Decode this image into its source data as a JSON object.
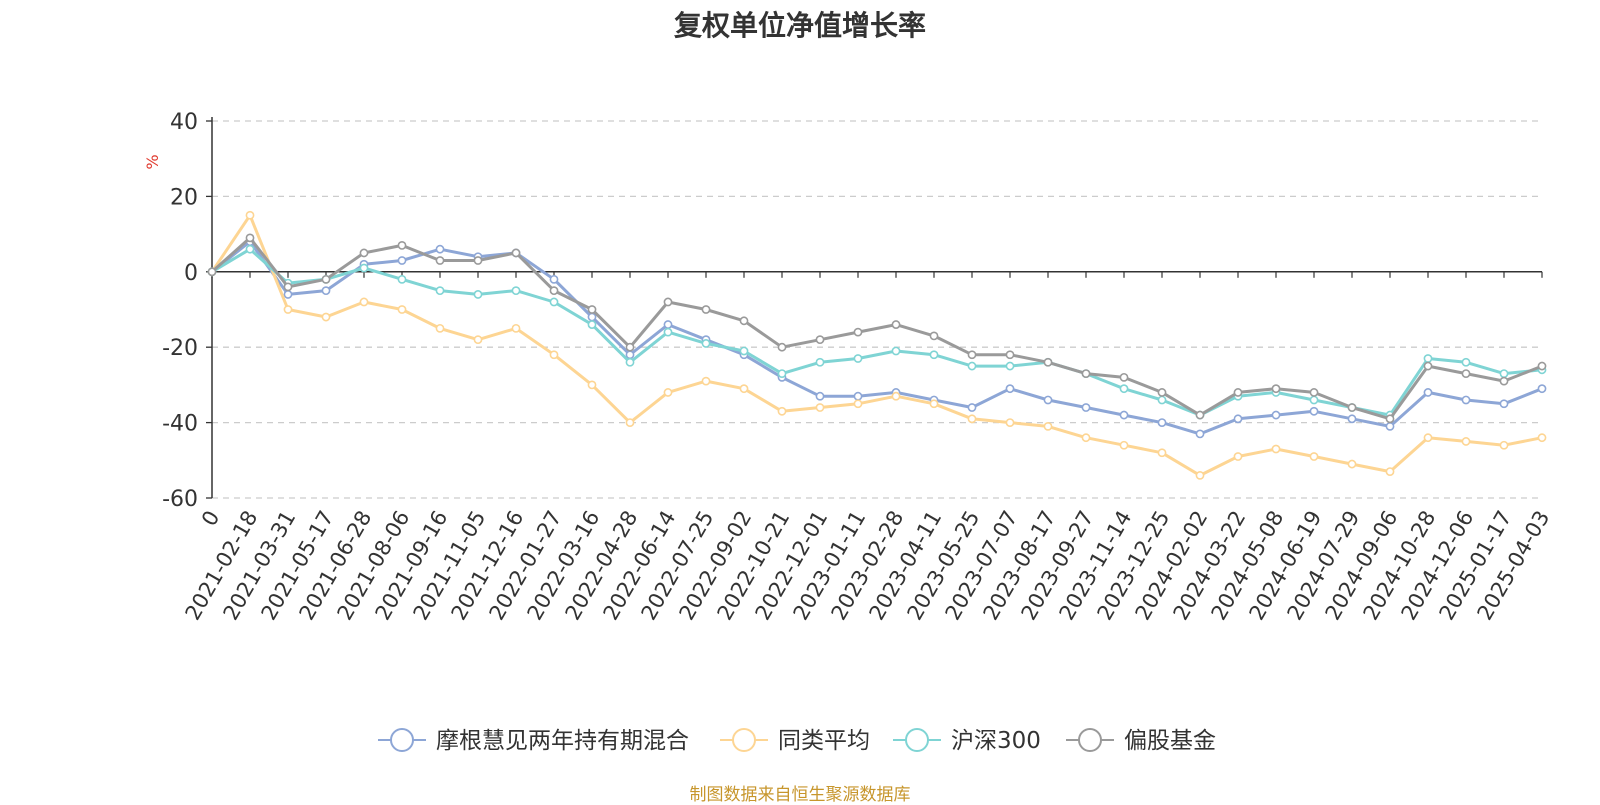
{
  "chart_data": {
    "type": "line",
    "title": "复权单位净值增长率",
    "ylabel": "%",
    "xlabel": "",
    "ylim": [
      -60,
      40
    ],
    "yticks": [
      -60,
      -40,
      -20,
      0,
      20,
      40
    ],
    "grid": true,
    "legend_position": "bottom-center",
    "source": "制图数据来自恒生聚源数据库",
    "categories": [
      "0",
      "2021-02-18",
      "2021-03-31",
      "2021-05-17",
      "2021-06-28",
      "2021-08-06",
      "2021-09-16",
      "2021-11-05",
      "2021-12-16",
      "2022-01-27",
      "2022-03-16",
      "2022-04-28",
      "2022-06-14",
      "2022-07-25",
      "2022-09-02",
      "2022-10-21",
      "2022-12-01",
      "2023-01-11",
      "2023-02-28",
      "2023-04-11",
      "2023-05-25",
      "2023-07-07",
      "2023-08-17",
      "2023-09-27",
      "2023-11-14",
      "2023-12-25",
      "2024-02-02",
      "2024-03-22",
      "2024-05-08",
      "2024-06-19",
      "2024-07-29",
      "2024-09-06",
      "2024-10-28",
      "2024-12-06",
      "2025-01-17",
      "2025-04-03"
    ],
    "series": [
      {
        "name": "摩根慧见两年持有期混合",
        "color": "#8da6d6",
        "values": [
          0,
          8,
          -6,
          -5,
          2,
          3,
          6,
          4,
          5,
          -2,
          -12,
          -22,
          -14,
          -18,
          -22,
          -28,
          -33,
          -33,
          -32,
          -34,
          -36,
          -31,
          -34,
          -36,
          -38,
          -40,
          -43,
          -39,
          -38,
          -37,
          -39,
          -41,
          -32,
          -34,
          -35,
          -31
        ]
      },
      {
        "name": "同类平均",
        "color": "#fdd593",
        "values": [
          0,
          15,
          -10,
          -12,
          -8,
          -10,
          -15,
          -18,
          -15,
          -22,
          -30,
          -40,
          -32,
          -29,
          -31,
          -37,
          -36,
          -35,
          -33,
          -35,
          -39,
          -40,
          -41,
          -44,
          -46,
          -48,
          -54,
          -49,
          -47,
          -49,
          -51,
          -53,
          -44,
          -45,
          -46,
          -44
        ]
      },
      {
        "name": "沪深300",
        "color": "#7fd4d4",
        "values": [
          0,
          6,
          -3,
          -2,
          1,
          -2,
          -5,
          -6,
          -5,
          -8,
          -14,
          -24,
          -16,
          -19,
          -21,
          -27,
          -24,
          -23,
          -21,
          -22,
          -25,
          -25,
          -24,
          -27,
          -31,
          -34,
          -38,
          -33,
          -32,
          -34,
          -36,
          -38,
          -23,
          -24,
          -27,
          -26
        ]
      },
      {
        "name": "偏股基金",
        "color": "#9a9a9a",
        "values": [
          0,
          9,
          -4,
          -2,
          5,
          7,
          3,
          3,
          5,
          -5,
          -10,
          -20,
          -8,
          -10,
          -13,
          -20,
          -18,
          -16,
          -14,
          -17,
          -22,
          -22,
          -24,
          -27,
          -28,
          -32,
          -38,
          -32,
          -31,
          -32,
          -36,
          -39,
          -25,
          -27,
          -29,
          -25
        ]
      }
    ]
  }
}
